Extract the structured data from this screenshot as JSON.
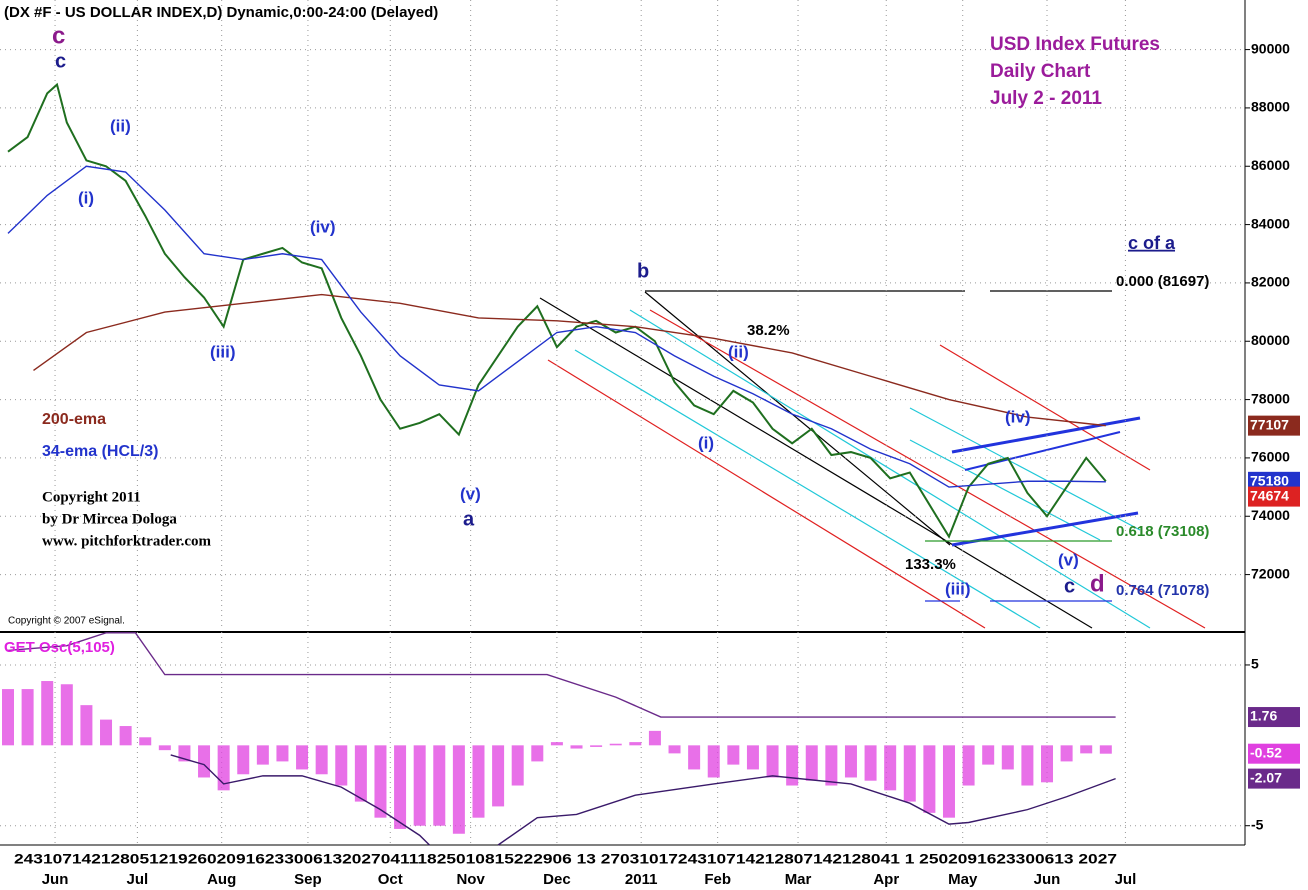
{
  "header": "(DX #F - US DOLLAR INDEX,D) Dynamic,0:00-24:00 (Delayed)",
  "day_row": "2431071421280512192602091623300613202704111825010815222906 13   2703101724310714212807142128041 1   2502091623300613 2027",
  "chart_data": [
    {
      "type": "line",
      "title": [
        "USD Index Futures",
        "Daily Chart",
        "July 2 - 2011"
      ],
      "xlim": [
        0,
        63.1
      ],
      "xticks": [
        {
          "value": 2.4,
          "label": "Jun"
        },
        {
          "value": 6.6,
          "label": "Jul"
        },
        {
          "value": 10.9,
          "label": "Aug"
        },
        {
          "value": 15.3,
          "label": "Sep"
        },
        {
          "value": 19.5,
          "label": "Oct"
        },
        {
          "value": 23.6,
          "label": "Nov"
        },
        {
          "value": 28.0,
          "label": "Dec"
        },
        {
          "value": 32.3,
          "label": "2011"
        },
        {
          "value": 36.2,
          "label": "Feb"
        },
        {
          "value": 40.3,
          "label": "Mar"
        },
        {
          "value": 44.8,
          "label": "Apr"
        },
        {
          "value": 48.7,
          "label": "May"
        },
        {
          "value": 53.0,
          "label": "Jun"
        },
        {
          "value": 57.0,
          "label": "Jul"
        }
      ],
      "ylim": [
        70100,
        91700
      ],
      "yticks": [
        72000,
        74000,
        76000,
        78000,
        80000,
        82000,
        84000,
        86000,
        88000,
        90000
      ],
      "grid": true,
      "series": [
        {
          "color": "#1f6f1f",
          "x": [
            0,
            1,
            2,
            2.5,
            3,
            4,
            5,
            6,
            7,
            8,
            9,
            10,
            11,
            12,
            13,
            14,
            15,
            16,
            17,
            18,
            19,
            20,
            21,
            22,
            23,
            24,
            25,
            26,
            27,
            28,
            29,
            30,
            31,
            32,
            33,
            34,
            35,
            36,
            37,
            38,
            39,
            40,
            41,
            42,
            43,
            44,
            45,
            46,
            47,
            48,
            49,
            50,
            51,
            52,
            53,
            54,
            55,
            56
          ],
          "values": [
            86500,
            87000,
            88500,
            88800,
            87500,
            86200,
            86000,
            85500,
            84300,
            83000,
            82200,
            81500,
            80500,
            82800,
            83000,
            83200,
            82700,
            82500,
            80800,
            79500,
            78000,
            77000,
            77200,
            77500,
            76800,
            78500,
            79500,
            80500,
            81200,
            79800,
            80500,
            80700,
            80300,
            80500,
            80000,
            78600,
            77800,
            77500,
            78300,
            77900,
            77000,
            76500,
            77000,
            76100,
            76200,
            76000,
            75300,
            75500,
            74400,
            73300,
            75000,
            75800,
            76000,
            74800,
            74000,
            75000,
            76000,
            75200
          ]
        },
        {
          "name": "200-ema",
          "color": "#8b2a1e",
          "x": [
            1.3,
            4,
            8,
            12,
            16,
            20,
            24,
            28,
            32,
            36,
            40,
            44,
            48,
            52,
            56
          ],
          "values": [
            79000,
            80300,
            81000,
            81300,
            81600,
            81300,
            80800,
            80700,
            80500,
            80100,
            79600,
            78800,
            78000,
            77400,
            77107
          ]
        },
        {
          "name": "34-ema (HCL/3)",
          "color": "#2233cc",
          "x": [
            0,
            2,
            4,
            6,
            8,
            10,
            12,
            14,
            16,
            18,
            20,
            22,
            24,
            26,
            28,
            30,
            32,
            34,
            36,
            38,
            40,
            42,
            44,
            46,
            48,
            50,
            52,
            54,
            56
          ],
          "values": [
            83700,
            85000,
            86000,
            85800,
            84500,
            83000,
            82800,
            83000,
            82800,
            81000,
            79500,
            78500,
            78300,
            79300,
            80300,
            80500,
            80300,
            79500,
            78800,
            78200,
            77500,
            77000,
            76300,
            75800,
            75000,
            75100,
            75200,
            75200,
            75180
          ]
        }
      ],
      "last_values": [
        {
          "value": 77107,
          "color": "#8b2a1e"
        },
        {
          "value": 75180,
          "color": "#2233cc"
        },
        {
          "value": 74674,
          "color": "#dd2222"
        }
      ],
      "annotations": [
        "c",
        "c",
        "(ii)",
        "(i)",
        "(iv)",
        "(iii)",
        "(v)",
        "a",
        "b",
        "38.2%",
        "(ii)",
        "(i)",
        "(iv)",
        "133.3%",
        "(iii)",
        "(v)",
        "c",
        "d",
        "c of a",
        "0.000 (81697)",
        "0.618 (73108)",
        "0.764 (71078)",
        "Copyright 2011",
        "by Dr Mircea Dologa",
        "www. pitchforktrader.com",
        "Copyright © 2007 eSignal."
      ]
    },
    {
      "type": "bar",
      "title": "GET Osc(5,105)",
      "color": "#e040e0",
      "xlim": [
        0,
        63.1
      ],
      "ylim": [
        -6.2,
        7.05
      ],
      "yticks": [
        5,
        -5
      ],
      "x": [
        0,
        1,
        2,
        3,
        4,
        5,
        6,
        7,
        8,
        9,
        10,
        11,
        12,
        13,
        14,
        15,
        16,
        17,
        18,
        19,
        20,
        21,
        22,
        23,
        24,
        25,
        26,
        27,
        28,
        29,
        30,
        31,
        32,
        33,
        34,
        35,
        36,
        37,
        38,
        39,
        40,
        41,
        42,
        43,
        44,
        45,
        46,
        47,
        48,
        49,
        50,
        51,
        52,
        53,
        54,
        55,
        56
      ],
      "values": [
        3.5,
        3.5,
        4.0,
        3.8,
        2.5,
        1.6,
        1.2,
        0.5,
        -0.3,
        -1.0,
        -2.0,
        -2.8,
        -1.8,
        -1.2,
        -1.0,
        -1.5,
        -1.8,
        -2.5,
        -3.5,
        -4.5,
        -5.2,
        -5.0,
        -5.0,
        -5.5,
        -4.5,
        -3.8,
        -2.5,
        -1.0,
        0.2,
        -0.2,
        -0.1,
        0.1,
        0.2,
        0.9,
        -0.5,
        -1.5,
        -2.0,
        -1.2,
        -1.5,
        -2.0,
        -2.5,
        -2.2,
        -2.5,
        -2.0,
        -2.2,
        -2.8,
        -3.5,
        -4.2,
        -4.5,
        -2.5,
        -1.2,
        -1.5,
        -2.5,
        -2.3,
        -1.0,
        -0.5,
        -0.52
      ],
      "series": [
        {
          "color": "#6a2a8a",
          "x": [
            0,
            3,
            5,
            6.5,
            8,
            27.5,
            31,
            33.3,
            56.5
          ],
          "values": [
            5.9,
            6.2,
            7.0,
            7.0,
            4.4,
            4.4,
            3.0,
            1.76,
            1.76
          ]
        },
        {
          "color": "#3a1a6a",
          "x": [
            8.3,
            10,
            11,
            13,
            15,
            17,
            19,
            21,
            21.5,
            23,
            25,
            27,
            29,
            32,
            36,
            39,
            43,
            46,
            48,
            49,
            52,
            54,
            56.5
          ],
          "values": [
            -0.6,
            -1.2,
            -2.4,
            -1.9,
            -1.9,
            -2.6,
            -4.0,
            -5.6,
            -6.2,
            null,
            -6.2,
            -4.5,
            -4.3,
            -3.1,
            -2.4,
            -1.9,
            -2.4,
            -3.6,
            -4.9,
            -4.8,
            -4.0,
            -3.2,
            -2.07
          ]
        }
      ],
      "last_values": [
        {
          "value": 1.76,
          "color": "#6a2a8a"
        },
        {
          "value": -0.52,
          "color": "#e040e0"
        },
        {
          "value": -2.07,
          "color": "#6a2a8a"
        }
      ]
    }
  ]
}
